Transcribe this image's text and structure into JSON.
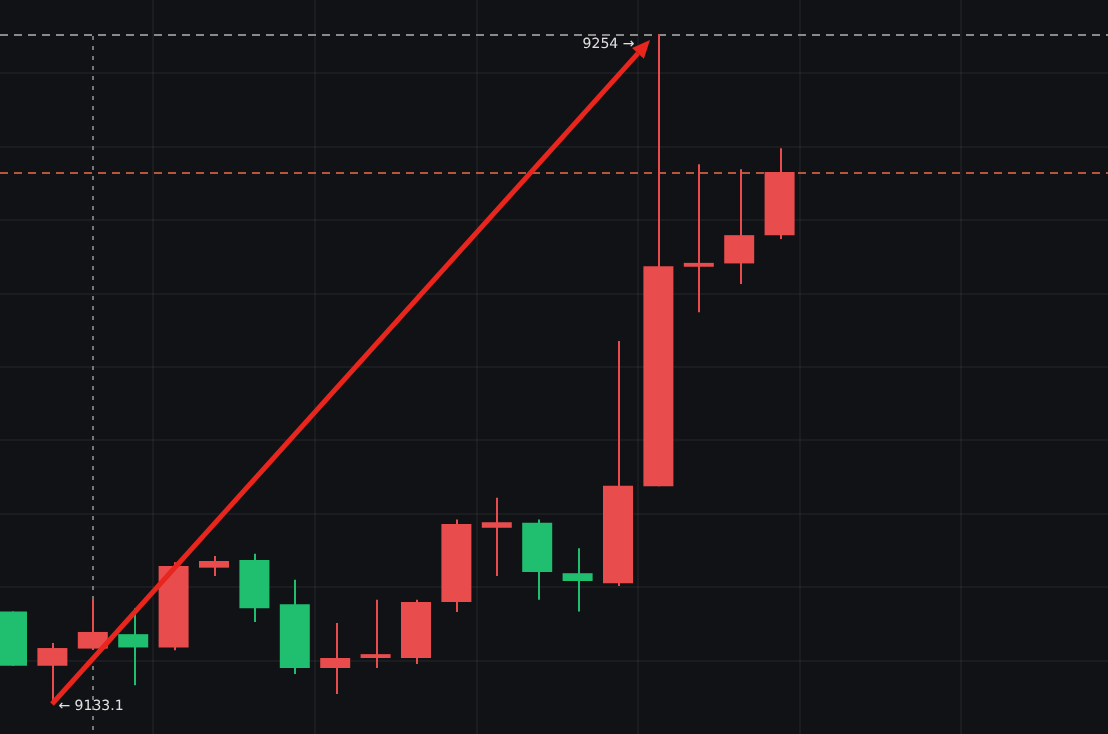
{
  "chart_data": {
    "type": "candlestick",
    "categories": [
      null,
      null,
      null,
      null,
      null,
      null,
      null,
      null,
      null,
      null,
      null,
      null,
      null,
      null,
      null,
      null,
      null,
      null,
      null,
      null
    ],
    "ohlc": [
      [
        9149.8,
        9149.8,
        9140.0,
        9140.0
      ],
      [
        9140.0,
        9144.1,
        9133.1,
        9143.2
      ],
      [
        9143.1,
        9151.9,
        9143.1,
        9146.1
      ],
      [
        9145.7,
        9150.4,
        9136.5,
        9143.3
      ],
      [
        9143.3,
        9158.7,
        9142.8,
        9158.0
      ],
      [
        9157.7,
        9159.8,
        9156.2,
        9158.9
      ],
      [
        9159.1,
        9160.2,
        9147.9,
        9150.4
      ],
      [
        9151.1,
        9155.5,
        9138.5,
        9139.6
      ],
      [
        9139.6,
        9147.7,
        9134.9,
        9141.4
      ],
      [
        9141.4,
        9151.9,
        9139.6,
        9142.1
      ],
      [
        9141.4,
        9151.9,
        9140.3,
        9151.5
      ],
      [
        9151.5,
        9166.4,
        9149.7,
        9165.6
      ],
      [
        9164.9,
        9170.3,
        9156.2,
        9165.9
      ],
      [
        9165.8,
        9166.4,
        9151.9,
        9156.9
      ],
      [
        9156.7,
        9161.2,
        9149.8,
        9155.3
      ],
      [
        9154.9,
        9198.6,
        9154.4,
        9172.5
      ],
      [
        9172.4,
        9254,
        9172.4,
        9212.1
      ],
      [
        9212.0,
        9230.5,
        9203.8,
        9212.7
      ],
      [
        9212.6,
        9229.6,
        9208.9,
        9217.7
      ],
      [
        9217.7,
        9233.4,
        9217.0,
        9229.1
      ]
    ],
    "colors": [
      "#1fbf6f",
      "#e84c4c",
      "#e84c4c",
      "#1fbf6f",
      "#e84c4c",
      "#e84c4c",
      "#1fbf6f",
      "#1fbf6f",
      "#e84c4c",
      "#e84c4c",
      "#e84c4c",
      "#e84c4c",
      "#e84c4c",
      "#1fbf6f",
      "#1fbf6f",
      "#e84c4c",
      "#e84c4c",
      "#e84c4c",
      "#e84c4c",
      "#e84c4c"
    ],
    "ref_lines": [
      {
        "axis": "y",
        "value": 9229.1,
        "color": "#b8553f",
        "line_style": "dashed"
      },
      {
        "axis": "y",
        "value": 9254,
        "color": "#8a8a8a",
        "line_style": "dashed"
      }
    ],
    "annotations": [
      "9254 →",
      "← 9133.1"
    ],
    "grid": true,
    "legend": false
  }
}
